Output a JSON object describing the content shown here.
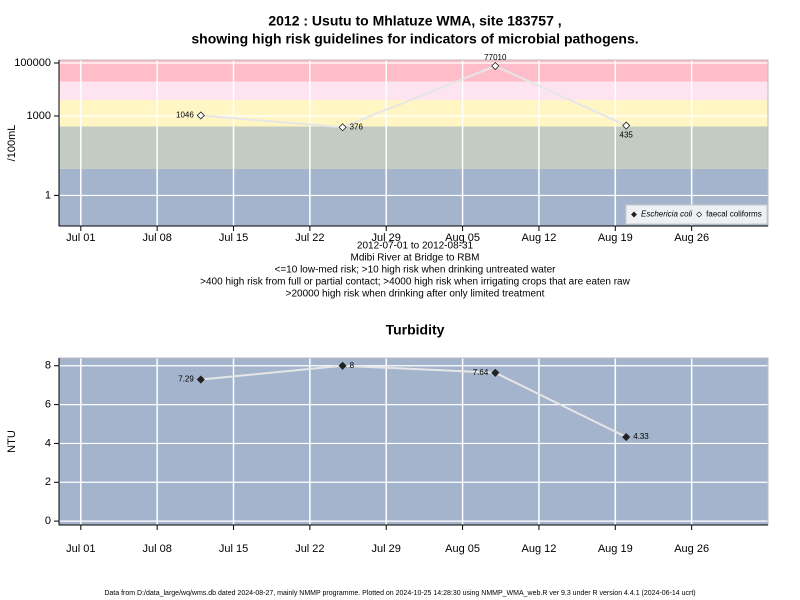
{
  "chart_data": [
    {
      "type": "line",
      "title": [
        "2012 : Usutu to Mhlatuze WMA, site 183757 ,",
        "showing high risk guidelines for indicators of microbial pathogens."
      ],
      "notes": [
        "2012-07-01 to 2012-08-31",
        "Mdibi River at Bridge to RBM",
        "<=10 low-med risk; >10 high risk when drinking untreated water",
        ">400 high risk from full or partial contact; >4000 high risk when irrigating crops that are eaten raw",
        ">20000 high risk when drinking after only limited treatment"
      ],
      "ylabel": "/100mL",
      "log_y": true,
      "x": [
        "2012-07-12",
        "2012-07-25",
        "2012-08-08",
        "2012-08-20"
      ],
      "xlim": [
        "2012-06-29",
        "2012-09-02"
      ],
      "xticks": [
        {
          "value": "2012-07-01",
          "label": "Jul 01"
        },
        {
          "value": "2012-07-08",
          "label": "Jul 08"
        },
        {
          "value": "2012-07-15",
          "label": "Jul 15"
        },
        {
          "value": "2012-07-22",
          "label": "Jul 22"
        },
        {
          "value": "2012-07-29",
          "label": "Jul 29"
        },
        {
          "value": "2012-08-05",
          "label": "Aug 05"
        },
        {
          "value": "2012-08-12",
          "label": "Aug 12"
        },
        {
          "value": "2012-08-19",
          "label": "Aug 19"
        },
        {
          "value": "2012-08-26",
          "label": "Aug 26"
        }
      ],
      "ylim": [
        0.07,
        130000
      ],
      "yticks": [
        1,
        1000,
        100000
      ],
      "thresholds": [
        10,
        400,
        4000,
        20000
      ],
      "band_colors": [
        "#a3b4cc",
        "#c3ccc2",
        "#fff6c4",
        "#fde4f0",
        "#ffbcc9"
      ],
      "grid": true,
      "line_color": "#e6e6e6",
      "legend": "bottom-right",
      "label_positions": [
        "left",
        "right",
        "above",
        "below"
      ],
      "series": [
        {
          "name": "Eschericia coli",
          "marker": "filled",
          "values": [
            null,
            null,
            null,
            null
          ]
        },
        {
          "name": "faecal coliforms",
          "marker": "open",
          "values": [
            1046,
            376,
            77010,
            435
          ]
        }
      ]
    },
    {
      "type": "line",
      "title": [
        "Turbidity"
      ],
      "ylabel": "NTU",
      "log_y": false,
      "x": [
        "2012-07-12",
        "2012-07-25",
        "2012-08-08",
        "2012-08-20"
      ],
      "xlim": [
        "2012-06-29",
        "2012-09-02"
      ],
      "xticks": [
        {
          "value": "2012-07-01",
          "label": "Jul 01"
        },
        {
          "value": "2012-07-08",
          "label": "Jul 08"
        },
        {
          "value": "2012-07-15",
          "label": "Jul 15"
        },
        {
          "value": "2012-07-22",
          "label": "Jul 22"
        },
        {
          "value": "2012-07-29",
          "label": "Jul 29"
        },
        {
          "value": "2012-08-05",
          "label": "Aug 05"
        },
        {
          "value": "2012-08-12",
          "label": "Aug 12"
        },
        {
          "value": "2012-08-19",
          "label": "Aug 19"
        },
        {
          "value": "2012-08-26",
          "label": "Aug 26"
        }
      ],
      "ylim": [
        -0.2,
        8.4
      ],
      "yticks": [
        0,
        2,
        4,
        6,
        8
      ],
      "band_colors": [
        "#a3b4cc"
      ],
      "grid": true,
      "line_color": "#e6e6e6",
      "label_positions": [
        "left",
        "right",
        "left",
        "right"
      ],
      "series": [
        {
          "marker": "filled",
          "values": [
            7.29,
            8,
            7.64,
            4.33
          ]
        }
      ]
    }
  ],
  "footer": "Data from D:/data_large/wq/wms.db dated 2024-08-27, mainly NMMP programme. Plotted on 2024-10-25 14:28:30 using NMMP_WMA_web.R ver 9.3 under R version 4.4.1 (2024-06-14 ucrt)"
}
